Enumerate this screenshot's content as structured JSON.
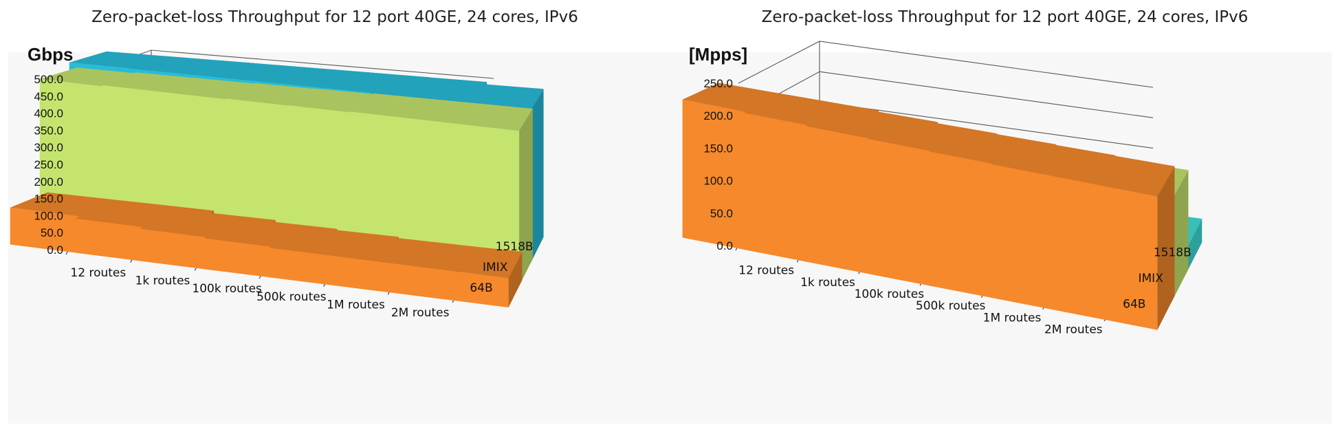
{
  "chart_data": [
    {
      "type": "bar",
      "title": "Zero-packet-loss Throughput for 12 port 40GE, 24 cores, IPv6",
      "ylabel": "Gbps",
      "ylim": [
        0,
        500
      ],
      "yticks": [
        "0.0",
        "50.0",
        "100.0",
        "150.0",
        "200.0",
        "250.0",
        "300.0",
        "350.0",
        "400.0",
        "450.0",
        "500.0"
      ],
      "categories": [
        "12 routes",
        "1k routes",
        "100k routes",
        "500k routes",
        "1M routes",
        "2M routes"
      ],
      "series": [
        {
          "name": "64B",
          "color": "#f5892b",
          "values": [
            108,
            100,
            94,
            90,
            86,
            86
          ]
        },
        {
          "name": "IMIX",
          "color": "#c5e46d",
          "values": [
            457,
            460,
            460,
            462,
            463,
            465
          ]
        },
        {
          "name": "1518B",
          "color": "#27bcd9",
          "values": [
            480,
            480,
            480,
            480,
            480,
            472
          ]
        }
      ],
      "grid": true,
      "view": "3d-perspective"
    },
    {
      "type": "bar",
      "title": "Zero-packet-loss Throughput for 12 port 40GE, 24 cores, IPv6",
      "ylabel": "[Mpps]",
      "ylim": [
        0,
        250
      ],
      "yticks": [
        "0.0",
        "50.0",
        "100.0",
        "150.0",
        "200.0",
        "250.0"
      ],
      "categories": [
        "12 routes",
        "1k routes",
        "100k routes",
        "500k routes",
        "1M routes",
        "2M routes"
      ],
      "series": [
        {
          "name": "64B",
          "color": "#f5892b",
          "values": [
            212,
            210,
            208,
            207,
            206,
            205
          ]
        },
        {
          "name": "IMIX",
          "color": "#c5e46d",
          "values": [
            160,
            160,
            160,
            160,
            160,
            160
          ]
        },
        {
          "name": "1518B",
          "color": "#40ded6",
          "values": [
            39,
            39,
            39,
            39,
            39,
            39
          ]
        }
      ],
      "grid": true,
      "view": "3d-perspective"
    }
  ]
}
